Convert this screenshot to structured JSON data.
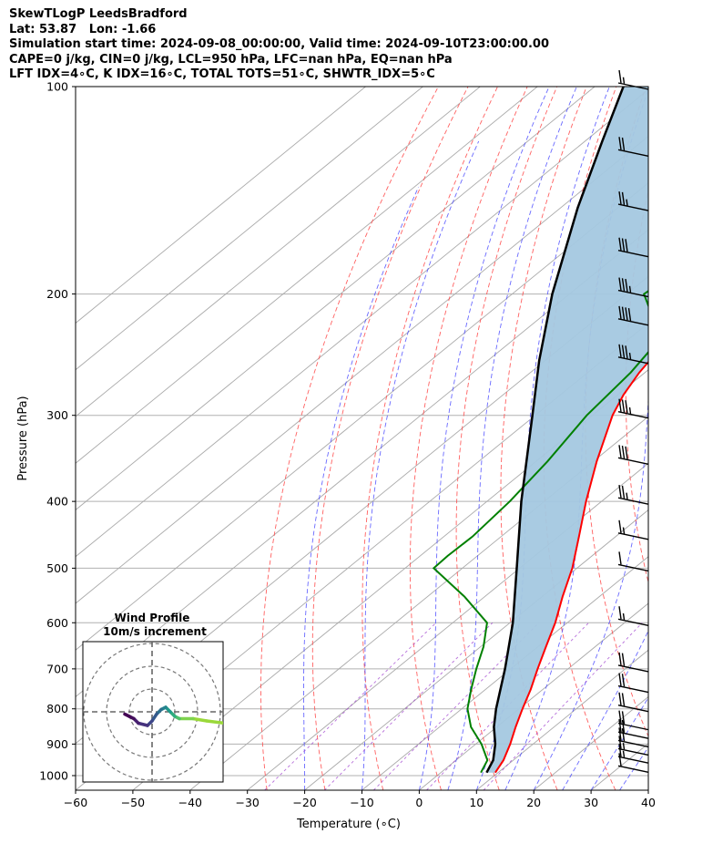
{
  "header": {
    "line1": "SkewTLogP LeedsBradford",
    "line2": "Lat: 53.87   Lon: -1.66",
    "line3": "Simulation start time: 2024-09-08_00:00:00, Valid time: 2024-09-10T23:00:00.00",
    "line4": "CAPE=0 j/kg, CIN=0 j/kg, LCL=950 hPa, LFC=nan hPa, EQ=nan hPa",
    "line5": "LFT IDX=4∘C, K IDX=16∘C, TOTAL TOTS=51∘C, SHWTR_IDX=5∘C"
  },
  "colors": {
    "temperature": "#ff0000",
    "dewpoint": "#008000",
    "parcel": "#000000",
    "cape_fill": "#a4c8e0",
    "dry_adiabat": "#ff4444",
    "moist_adiabat": "#4444ff",
    "mixing_ratio": "#9933cc",
    "isotherm": "#888888"
  },
  "chart_data": {
    "type": "line",
    "xlabel": "Temperature (∘C)",
    "ylabel": "Pressure (hPa)",
    "xlim": [
      -60,
      40
    ],
    "ylim": [
      1050,
      100
    ],
    "y_scale": "log",
    "skewed": true,
    "grid": true,
    "x_ticks": [
      "−60",
      "−50",
      "−40",
      "−30",
      "−20",
      "−10",
      "0",
      "10",
      "20",
      "30",
      "40"
    ],
    "y_ticks": [
      "100",
      "200",
      "300",
      "400",
      "500",
      "600",
      "700",
      "800",
      "900",
      "1000"
    ],
    "series": [
      {
        "key": "temperature",
        "pressure": [
          990,
          950,
          900,
          850,
          800,
          750,
          700,
          650,
          600,
          550,
          500,
          450,
          400,
          350,
          300,
          280,
          260,
          240,
          220,
          200,
          180,
          160,
          140,
          120,
          100
        ],
        "values": [
          9.5,
          8.3,
          6.0,
          3.3,
          0.6,
          -2.1,
          -5.3,
          -8.6,
          -12.1,
          -16.4,
          -20.8,
          -26.4,
          -32.7,
          -39.4,
          -46.5,
          -49.0,
          -51.0,
          -52.5,
          -53.0,
          -52.7,
          -51.5,
          -49.5,
          -47.5,
          -44.5,
          -41.0
        ]
      },
      {
        "key": "dewpoint",
        "pressure": [
          990,
          950,
          900,
          850,
          800,
          750,
          700,
          650,
          600,
          550,
          500,
          480,
          450,
          400,
          350,
          300,
          260,
          240,
          220,
          200,
          160,
          130,
          100
        ],
        "values": [
          7.0,
          5.5,
          1.0,
          -4.5,
          -9.0,
          -12.5,
          -16.0,
          -19.5,
          -24.0,
          -33.5,
          -45.0,
          -45.2,
          -45.0,
          -46.0,
          -48.0,
          -51.0,
          -52.5,
          -54.0,
          -59.0,
          -67.0,
          -64.0,
          -61.0,
          -58.0
        ]
      },
      {
        "key": "parcel",
        "pressure": [
          990,
          950,
          900,
          850,
          800,
          700,
          600,
          500,
          400,
          300,
          250,
          200,
          150,
          120,
          100
        ],
        "values": [
          8.0,
          6.5,
          3.4,
          -0.5,
          -4.0,
          -11.0,
          -19.5,
          -30.5,
          -44.0,
          -60.5,
          -71.0,
          -83.0,
          -97.0,
          -107.0,
          -115.0
        ]
      }
    ],
    "winds": {
      "pressure": [
        980,
        950,
        925,
        900,
        875,
        850,
        800,
        750,
        700,
        600,
        500,
        450,
        400,
        350,
        300,
        250,
        220,
        200,
        175,
        150,
        125,
        100
      ],
      "speed_kt": [
        10,
        15,
        15,
        20,
        20,
        20,
        20,
        20,
        20,
        15,
        10,
        15,
        25,
        30,
        35,
        35,
        40,
        35,
        30,
        25,
        20,
        15
      ],
      "direction_deg": [
        245,
        240,
        240,
        245,
        250,
        255,
        260,
        265,
        270,
        280,
        280,
        270,
        265,
        265,
        265,
        265,
        265,
        265,
        265,
        265,
        265,
        265
      ]
    },
    "hodograph": {
      "title_line1": "Wind Profile",
      "title_line2": "10m/s increment",
      "rings": 3,
      "u": [
        16,
        12,
        9,
        6,
        5,
        4,
        3,
        2,
        1,
        0,
        -1,
        -3,
        -4,
        -5,
        -6
      ],
      "v": [
        -2.5,
        -2,
        -1.5,
        -1.5,
        -1,
        0,
        1,
        0.5,
        -0.5,
        -2,
        -3,
        -2.5,
        -1.5,
        -1,
        -0.5
      ]
    }
  }
}
